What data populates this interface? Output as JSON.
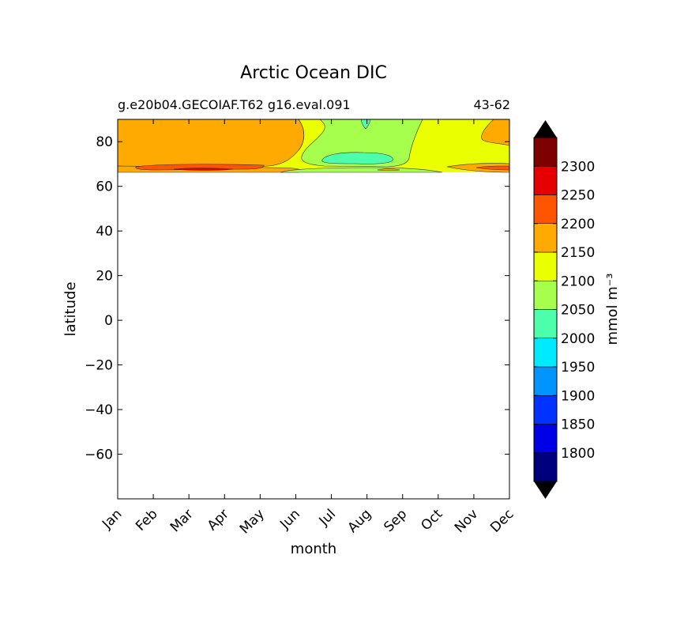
{
  "chart_data": {
    "type": "heatmap",
    "title": "Arctic Ocean DIC",
    "subtitle_left": "g.e20b04.GECOIAF.T62 g16.eval.091",
    "subtitle_right": "43-62",
    "xlabel": "month",
    "ylabel": "latitude",
    "x_categories": [
      "Jan",
      "Feb",
      "Mar",
      "Apr",
      "May",
      "Jun",
      "Jul",
      "Aug",
      "Sep",
      "Oct",
      "Nov",
      "Dec"
    ],
    "y_ticks": [
      "80",
      "60",
      "40",
      "20",
      "0",
      "−20",
      "−40",
      "−60"
    ],
    "y_tick_values": [
      80,
      60,
      40,
      20,
      0,
      -20,
      -40,
      -60
    ],
    "ylim": [
      -80,
      90
    ],
    "data_extent_lat": [
      66,
      90
    ],
    "colorbar": {
      "label": "mmol m⁻³",
      "tick_labels": [
        "1800",
        "1850",
        "1900",
        "1950",
        "2000",
        "2050",
        "2100",
        "2150",
        "2200",
        "2250",
        "2300"
      ],
      "levels": [
        1750,
        1800,
        1850,
        1900,
        1950,
        2000,
        2050,
        2100,
        2150,
        2200,
        2250,
        2300,
        2350
      ],
      "colors": [
        "#00007f",
        "#0000e6",
        "#0033ff",
        "#0094ff",
        "#00eaff",
        "#4dffaa",
        "#a6ff4d",
        "#eaff00",
        "#ffaa00",
        "#ff5500",
        "#e60000",
        "#7f0000"
      ],
      "extend_under_color": "#000000",
      "extend_over_color": "#000000"
    },
    "field_summary": [
      {
        "months": "Jan-Jun",
        "lat_range": [
          72,
          90
        ],
        "band": "2150-2200"
      },
      {
        "months": "Jan-May",
        "lat_range": [
          68,
          70
        ],
        "band": "2200-2250"
      },
      {
        "months": "Jun-Jul",
        "lat_range": [
          66,
          90
        ],
        "band": "2100-2150"
      },
      {
        "months": "Jul-Sep",
        "lat_range": [
          68,
          90
        ],
        "band": "2050-2100"
      },
      {
        "months": "Aug",
        "lat_range": [
          70,
          74
        ],
        "band": "2000-2050"
      },
      {
        "months": "Sep-Dec",
        "lat_range": [
          66,
          90
        ],
        "band": "2100-2150"
      },
      {
        "months": "Nov-Dec",
        "lat_range": [
          68,
          90
        ],
        "band": "2150-2200"
      }
    ]
  }
}
